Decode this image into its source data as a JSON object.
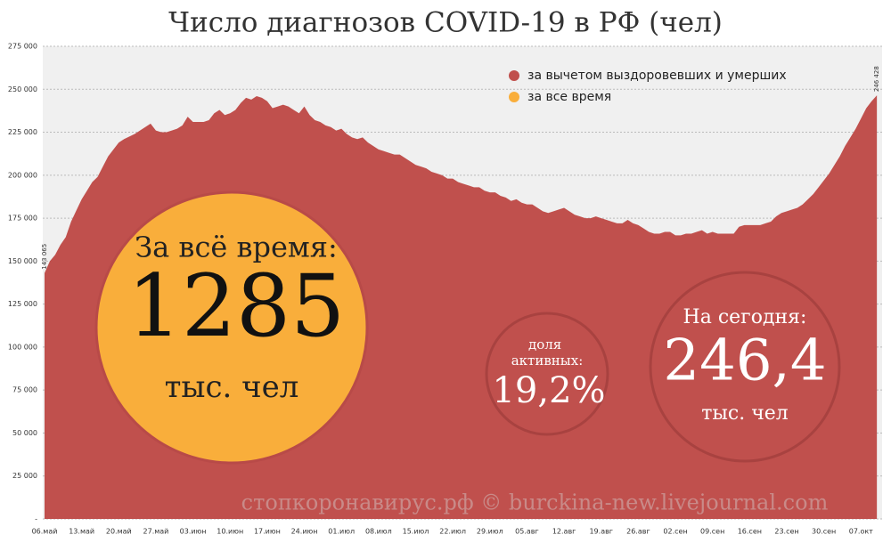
{
  "chart_data": {
    "type": "area",
    "title": "Число диагнозов COVID-19 в РФ (чел)",
    "categories": [
      "06.май",
      null,
      null,
      null,
      null,
      null,
      null,
      "13.май",
      null,
      null,
      null,
      null,
      null,
      null,
      "20.май",
      null,
      null,
      null,
      null,
      null,
      null,
      "27.май",
      null,
      null,
      null,
      null,
      null,
      null,
      "03.июн",
      null,
      null,
      null,
      null,
      null,
      null,
      "10.июн",
      null,
      null,
      null,
      null,
      null,
      null,
      "17.июн",
      null,
      null,
      null,
      null,
      null,
      null,
      "24.июн",
      null,
      null,
      null,
      null,
      null,
      null,
      "01.июл",
      null,
      null,
      null,
      null,
      null,
      null,
      "08.июл",
      null,
      null,
      null,
      null,
      null,
      null,
      "15.июл",
      null,
      null,
      null,
      null,
      null,
      null,
      "22.июл",
      null,
      null,
      null,
      null,
      null,
      null,
      "29.июл",
      null,
      null,
      null,
      null,
      null,
      null,
      "05.авг",
      null,
      null,
      null,
      null,
      null,
      null,
      "12.авг",
      null,
      null,
      null,
      null,
      null,
      null,
      "19.авг",
      null,
      null,
      null,
      null,
      null,
      null,
      "26.авг",
      null,
      null,
      null,
      null,
      null,
      null,
      "02.сен",
      null,
      null,
      null,
      null,
      null,
      null,
      "09.сен",
      null,
      null,
      null,
      null,
      null,
      null,
      "16.сен",
      null,
      null,
      null,
      null,
      null,
      null,
      "23.сен",
      null,
      null,
      null,
      null,
      null,
      null,
      "30.сен",
      null,
      null,
      null,
      null,
      null,
      null,
      "07.окт",
      null,
      null,
      null
    ],
    "series": [
      {
        "name": "за вычетом выздоровевших и умерших",
        "color": "#c0504d",
        "values": [
          143065,
          150000,
          153700,
          159500,
          164000,
          173000,
          179500,
          186000,
          191000,
          196000,
          199000,
          205000,
          211000,
          215000,
          219000,
          221000,
          222500,
          224000,
          226000,
          228000,
          230000,
          226000,
          225000,
          225000,
          226000,
          227000,
          229000,
          234000,
          231000,
          231000,
          231000,
          232000,
          236000,
          238000,
          235000,
          236000,
          238000,
          242000,
          245000,
          244000,
          246000,
          245000,
          243000,
          239000,
          240000,
          241000,
          240000,
          238000,
          236000,
          240000,
          235000,
          232000,
          231000,
          229000,
          228000,
          226000,
          227000,
          224000,
          222000,
          221000,
          222000,
          219000,
          217000,
          215000,
          214000,
          213000,
          212000,
          212000,
          210000,
          208000,
          206000,
          205000,
          204000,
          202000,
          201000,
          200000,
          198000,
          198000,
          196000,
          195000,
          194000,
          193000,
          193000,
          191000,
          190000,
          190000,
          188000,
          187000,
          185000,
          186000,
          184000,
          183000,
          183000,
          181000,
          179000,
          178000,
          179000,
          180000,
          181000,
          179000,
          177000,
          176000,
          175000,
          175000,
          176000,
          175000,
          174000,
          173000,
          172000,
          172000,
          174000,
          172000,
          171000,
          169000,
          167000,
          166000,
          166000,
          167000,
          167000,
          165000,
          165000,
          166000,
          166000,
          167000,
          168000,
          166000,
          167000,
          166000,
          166000,
          166000,
          166000,
          170000,
          171000,
          171000,
          171000,
          171000,
          172000,
          173000,
          176000,
          178000,
          179000,
          180000,
          181000,
          183000,
          186000,
          189000,
          193000,
          197000,
          201000,
          206000,
          211000,
          217000,
          222000,
          227000,
          233000,
          239000,
          243000,
          246428
        ],
        "value_labels": [
          "143 065",
          null,
          null,
          null,
          null,
          null,
          null,
          null,
          null,
          null,
          null,
          null,
          null,
          null,
          null,
          null,
          null,
          null,
          null,
          null,
          null,
          null,
          null,
          null,
          null,
          null,
          null,
          null,
          null,
          null,
          null,
          null,
          null,
          null,
          null,
          null,
          null,
          null,
          null,
          null,
          null,
          null,
          null,
          null,
          null,
          null,
          null,
          null,
          null,
          null,
          null,
          null,
          null,
          null,
          null,
          null,
          null,
          null,
          null,
          null,
          null,
          null,
          null,
          null,
          null,
          null,
          null,
          null,
          null,
          null,
          null,
          null,
          null,
          null,
          null,
          null,
          null,
          null,
          null,
          null,
          null,
          null,
          null,
          null,
          null,
          null,
          null,
          null,
          null,
          null,
          null,
          null,
          null,
          null,
          null,
          null,
          null,
          null,
          null,
          null,
          null,
          null,
          null,
          null,
          null,
          null,
          null,
          null,
          null,
          null,
          null,
          null,
          null,
          null,
          null,
          null,
          null,
          null,
          null,
          null,
          null,
          null,
          null,
          null,
          null,
          null,
          null,
          null,
          null,
          null,
          null,
          null,
          null,
          null,
          null,
          null,
          null,
          null,
          null,
          null,
          null,
          null,
          null,
          null,
          null,
          null,
          null,
          null,
          null,
          null,
          null,
          null,
          null,
          null,
          null,
          null,
          null,
          "246 428"
        ]
      },
      {
        "name": "за все время",
        "color": "#f9ae3b"
      }
    ],
    "ylim": [
      0,
      275000
    ],
    "yticks": [
      {
        "value": 0,
        "label": "-"
      },
      {
        "value": 25000,
        "label": "25 000"
      },
      {
        "value": 50000,
        "label": "50 000"
      },
      {
        "value": 75000,
        "label": "75 000"
      },
      {
        "value": 100000,
        "label": "100 000"
      },
      {
        "value": 125000,
        "label": "125 000"
      },
      {
        "value": 150000,
        "label": "150 000"
      },
      {
        "value": 175000,
        "label": "175 000"
      },
      {
        "value": 200000,
        "label": "200 000"
      },
      {
        "value": 225000,
        "label": "225 000"
      },
      {
        "value": 250000,
        "label": "250 000"
      },
      {
        "value": 275000,
        "label": "275 000"
      }
    ],
    "grid": true,
    "annotations": {
      "total_title": "За всё время:",
      "total_value": "1285",
      "total_unit": "тыс. чел",
      "share_title": "доля активных:",
      "share_value": "19,2%",
      "today_title": "На сегодня:",
      "today_value": "246,4",
      "today_unit": "тыс. чел",
      "watermark": "стопкоронавирус.рф © burckina-new.livejournal.com"
    }
  }
}
